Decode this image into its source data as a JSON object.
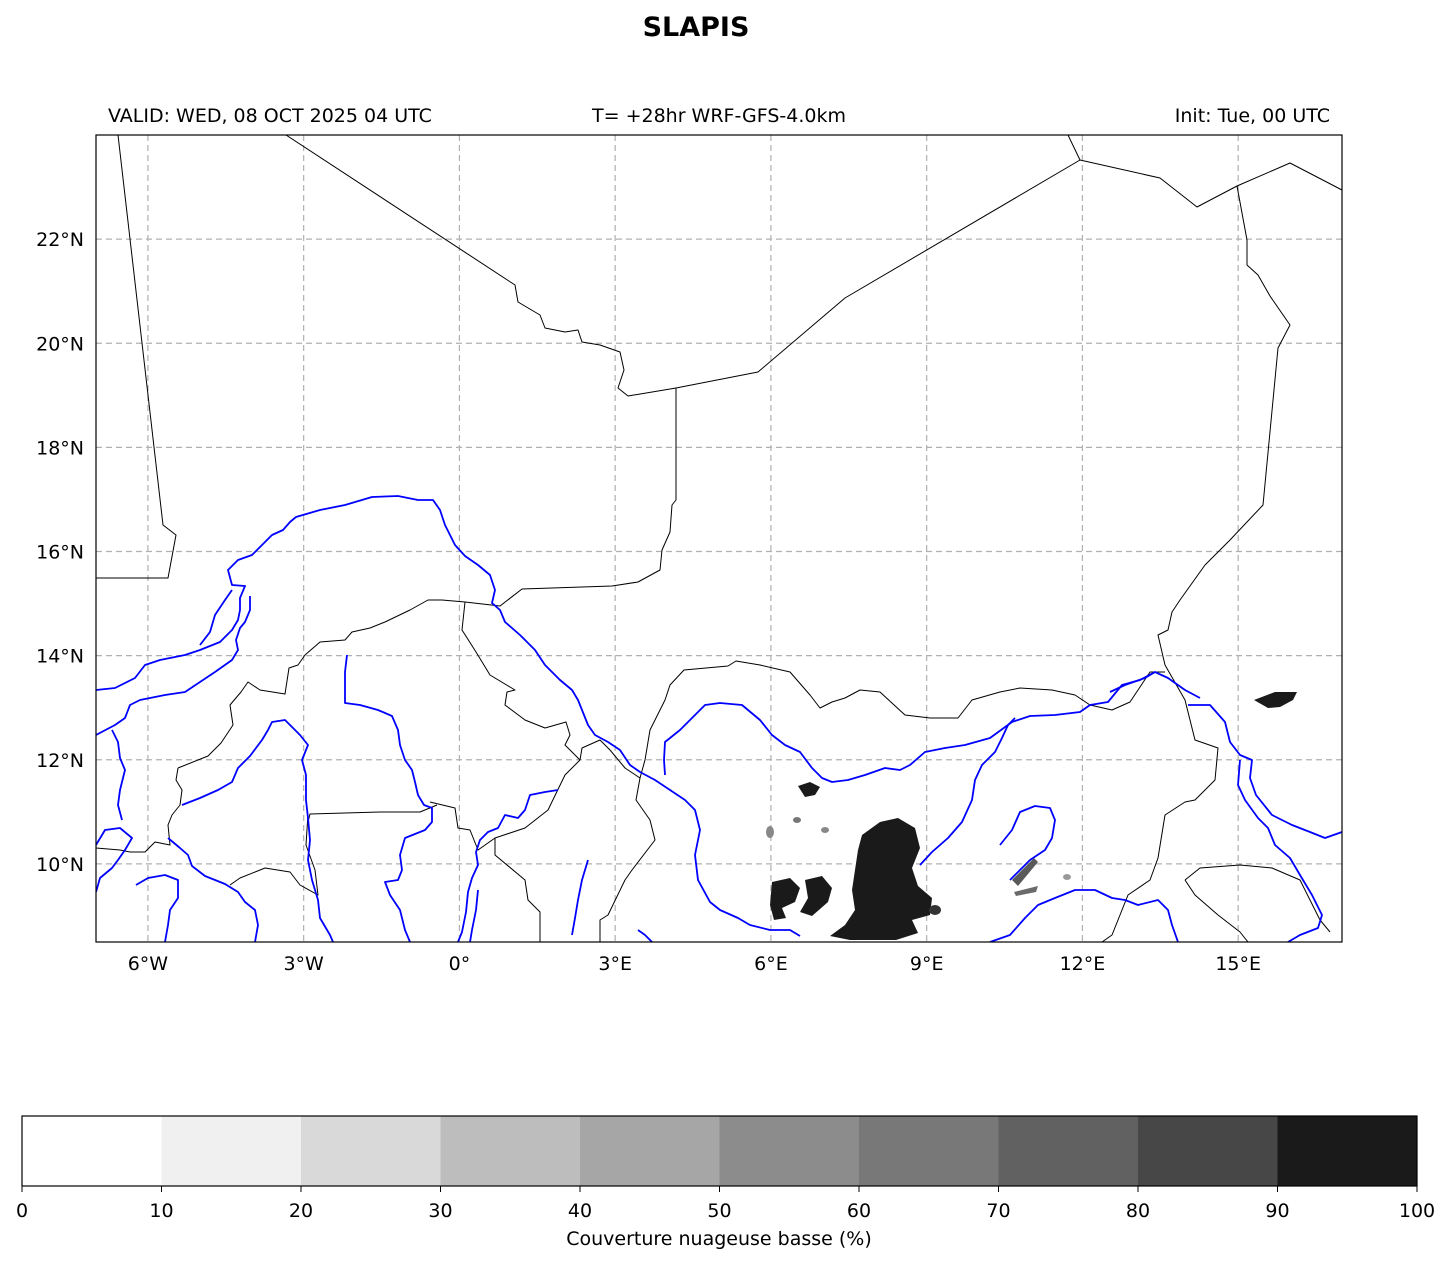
{
  "title": "SLAPIS",
  "header": {
    "valid": "VALID: WED, 08 OCT 2025 04 UTC",
    "forecast": "T= +28hr WRF-GFS-4.0km",
    "init": "Init: Tue, 00 UTC"
  },
  "map": {
    "extent": {
      "lon": [
        -7,
        17
      ],
      "lat": [
        8.5,
        24
      ]
    },
    "lat_ticks": [
      {
        "value": 22,
        "label": "22°N"
      },
      {
        "value": 20,
        "label": "20°N"
      },
      {
        "value": 18,
        "label": "18°N"
      },
      {
        "value": 16,
        "label": "16°N"
      },
      {
        "value": 14,
        "label": "14°N"
      },
      {
        "value": 12,
        "label": "12°N"
      },
      {
        "value": 10,
        "label": "10°N"
      }
    ],
    "lon_ticks": [
      {
        "value": -6,
        "label": "6°W"
      },
      {
        "value": -3,
        "label": "3°W"
      },
      {
        "value": 0,
        "label": "0°"
      },
      {
        "value": 3,
        "label": "3°E"
      },
      {
        "value": 6,
        "label": "6°E"
      },
      {
        "value": 9,
        "label": "9°E"
      },
      {
        "value": 12,
        "label": "12°E"
      },
      {
        "value": 15,
        "label": "15°E"
      }
    ],
    "gridlines": true,
    "colors": {
      "borders": "#000000",
      "rivers": "#0000ff",
      "grid": "#b0b0b0",
      "cloud": "#1a1a1a"
    }
  },
  "colorbar": {
    "label": "Couverture nuageuse basse (%)",
    "ticks": [
      "0",
      "10",
      "20",
      "30",
      "40",
      "50",
      "60",
      "70",
      "80",
      "90",
      "100"
    ],
    "colors": [
      "#ffffff",
      "#f0f0f0",
      "#d9d9d9",
      "#bdbdbd",
      "#a6a6a6",
      "#8c8c8c",
      "#787878",
      "#616161",
      "#474747",
      "#1a1a1a"
    ]
  }
}
